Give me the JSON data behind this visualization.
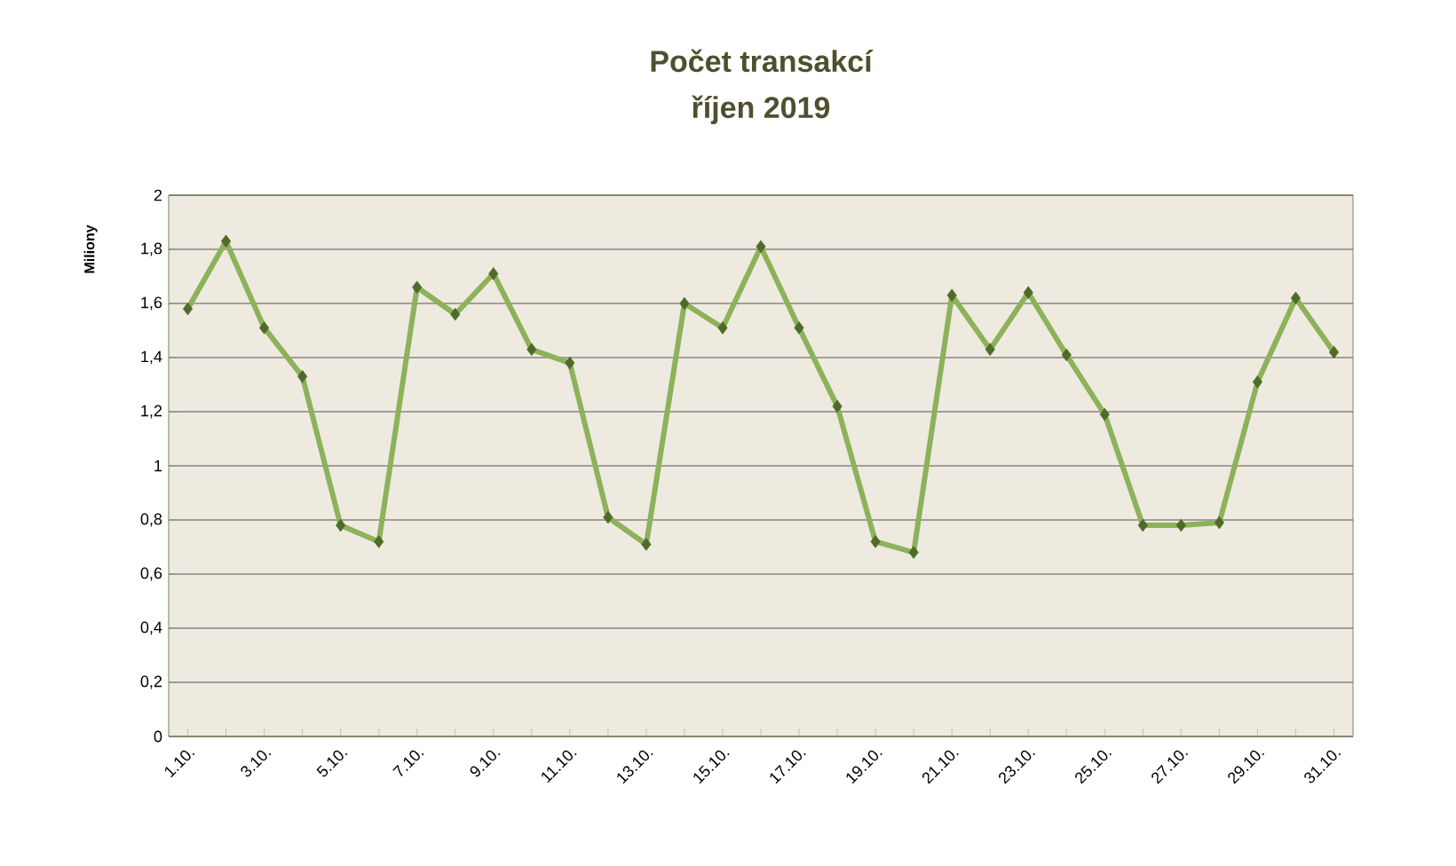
{
  "chart_data": {
    "type": "line",
    "title": "Počet transakcí",
    "subtitle": "říjen 2019",
    "ylabel": "Miliony",
    "categories": [
      "1.10.",
      null,
      "3.10.",
      null,
      "5.10.",
      null,
      "7.10.",
      null,
      "9.10.",
      null,
      "11.10.",
      null,
      "13.10.",
      null,
      "15.10.",
      null,
      "17.10.",
      null,
      "19.10.",
      null,
      "21.10.",
      null,
      "23.10.",
      null,
      "25.10.",
      null,
      "27.10.",
      null,
      "29.10.",
      null,
      "31.10."
    ],
    "series": [
      {
        "color": "#8db25a",
        "values": [
          1.58,
          1.83,
          1.51,
          1.33,
          0.78,
          0.72,
          1.66,
          1.56,
          1.71,
          1.43,
          1.38,
          0.81,
          0.71,
          1.6,
          1.51,
          1.81,
          1.51,
          1.22,
          0.72,
          0.68,
          1.63,
          1.43,
          1.64,
          1.41,
          1.19,
          0.78,
          0.78,
          0.79,
          1.31,
          1.62,
          1.42
        ]
      }
    ],
    "ylim": [
      0,
      2
    ],
    "yticks": [
      0,
      {
        "value": 0.2,
        "label": "0,2"
      },
      {
        "value": 0.4,
        "label": "0,4"
      },
      {
        "value": 0.6,
        "label": "0,6"
      },
      {
        "value": 0.8,
        "label": "0,8"
      },
      1,
      {
        "value": 1.2,
        "label": "1,2"
      },
      {
        "value": 1.4,
        "label": "1,4"
      },
      {
        "value": 1.6,
        "label": "1,6"
      },
      {
        "value": 1.8,
        "label": "1,8"
      },
      2
    ],
    "grid": "y",
    "marker": "diamond",
    "line_style": "solid"
  }
}
